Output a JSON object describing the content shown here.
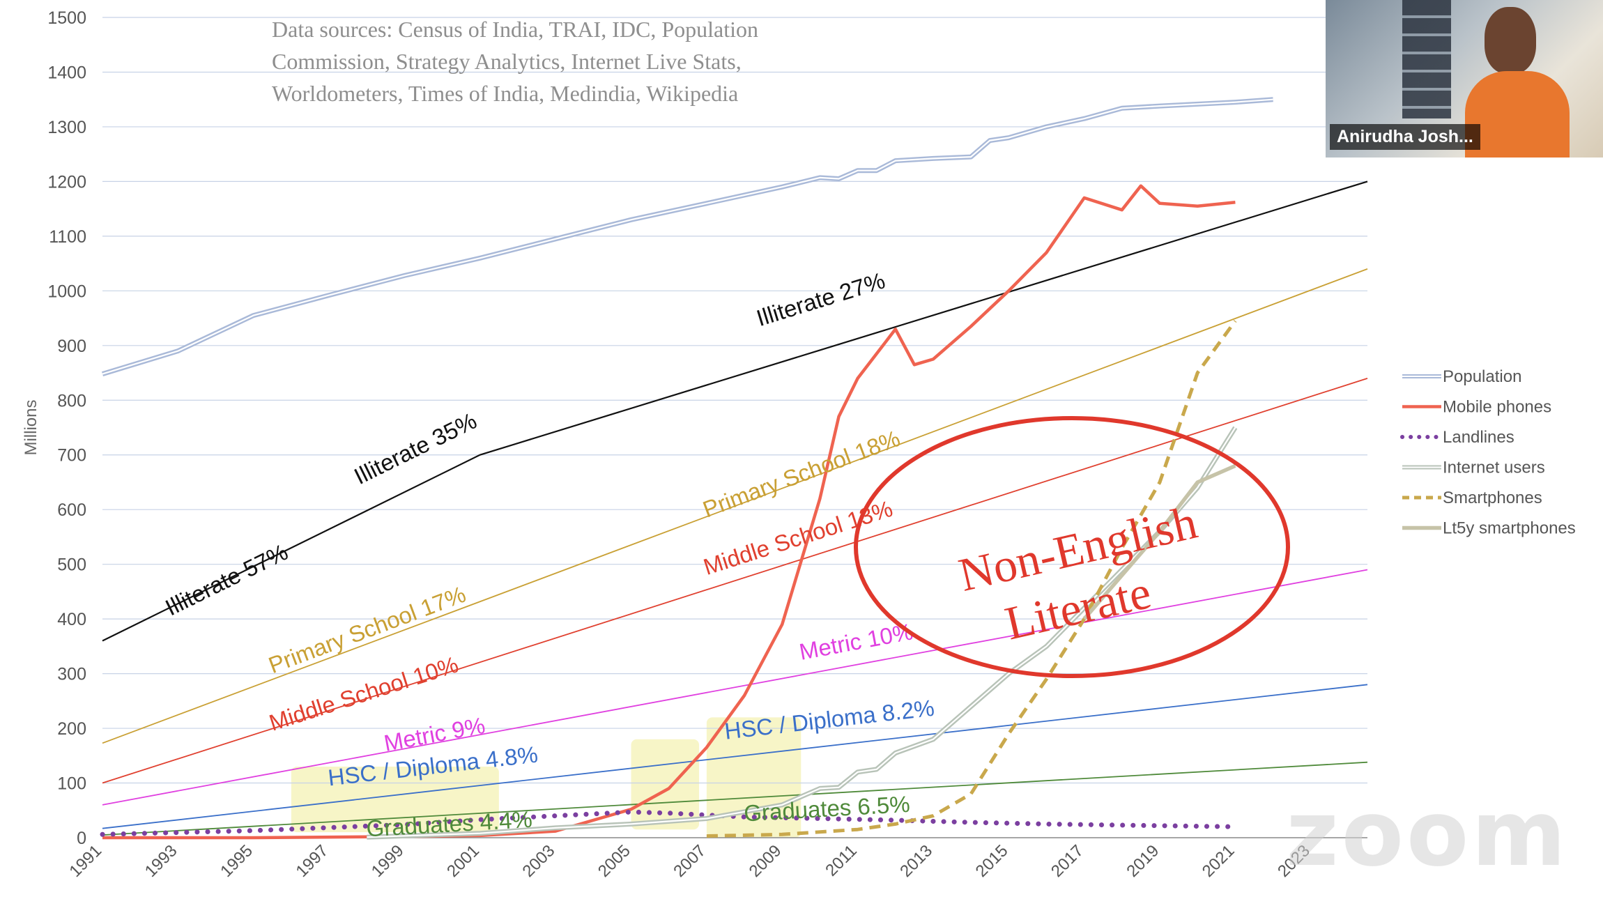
{
  "window": {
    "app": "Zoom",
    "watermark": "zoom",
    "participant_name": "Anirudha Josh..."
  },
  "colors": {
    "population": "#a9b9d8",
    "mobile": "#ef6350",
    "landlines": "#7b3fa0",
    "internet": "#b8c3b8",
    "smartphones": "#c9a84c",
    "lt5y": "#c6c3a8",
    "illiterate": "#111111",
    "primary": "#c9a034",
    "middle": "#e0402f",
    "metric": "#e040e0",
    "hsc": "#3a6fc9",
    "graduates": "#4f8a3a",
    "annotation": "#e0382c",
    "highlight": "#f4f2b4"
  },
  "chart_data": {
    "type": "line",
    "ylabel": "Millions",
    "xlabel": "",
    "ylim": [
      0,
      1500
    ],
    "xlim": [
      1991,
      2024.5
    ],
    "grid": true,
    "legend_position": "right",
    "y_ticks": [
      "0",
      "100",
      "200",
      "300",
      "400",
      "500",
      "600",
      "700",
      "800",
      "900",
      "1000",
      "1100",
      "1200",
      "1300",
      "1400",
      "1500"
    ],
    "x_ticks": [
      "1991",
      "1993",
      "1995",
      "1997",
      "1999",
      "2001",
      "2003",
      "2005",
      "2007",
      "2009",
      "2011",
      "2013",
      "2015",
      "2017",
      "2019",
      "2021",
      "2023"
    ],
    "sources_lines": [
      "Data sources: Census of India, TRAI, IDC, Population",
      "Commission, Strategy Analytics, Internet Live Stats,",
      "Worldometers,  Times of India, Medindia, Wikipedia"
    ],
    "series": [
      {
        "name": "Population",
        "style": "double",
        "color_key": "population",
        "points": [
          [
            1991,
            848
          ],
          [
            1993,
            890
          ],
          [
            1995,
            955
          ],
          [
            1997,
            992
          ],
          [
            1999,
            1028
          ],
          [
            2001,
            1060
          ],
          [
            2003,
            1095
          ],
          [
            2005,
            1130
          ],
          [
            2007,
            1160
          ],
          [
            2009,
            1190
          ],
          [
            2010,
            1207
          ],
          [
            2010.5,
            1205
          ],
          [
            2011,
            1220
          ],
          [
            2011.5,
            1220
          ],
          [
            2012,
            1238
          ],
          [
            2013,
            1242
          ],
          [
            2014,
            1245
          ],
          [
            2014.5,
            1275
          ],
          [
            2015,
            1280
          ],
          [
            2016,
            1300
          ],
          [
            2017,
            1315
          ],
          [
            2018,
            1334
          ],
          [
            2019,
            1338
          ],
          [
            2021,
            1345
          ],
          [
            2022,
            1350
          ]
        ]
      },
      {
        "name": "Mobile phones",
        "style": "solid",
        "color_key": "mobile",
        "points": [
          [
            1991,
            0
          ],
          [
            1995,
            0
          ],
          [
            1999,
            2
          ],
          [
            2001,
            4
          ],
          [
            2003,
            12
          ],
          [
            2005,
            52
          ],
          [
            2006,
            90
          ],
          [
            2007,
            165
          ],
          [
            2008,
            260
          ],
          [
            2009,
            390
          ],
          [
            2010,
            620
          ],
          [
            2010.5,
            770
          ],
          [
            2011,
            840
          ],
          [
            2012,
            930
          ],
          [
            2012.5,
            865
          ],
          [
            2013,
            875
          ],
          [
            2014,
            935
          ],
          [
            2015,
            1000
          ],
          [
            2016,
            1070
          ],
          [
            2017,
            1170
          ],
          [
            2018,
            1148
          ],
          [
            2018.5,
            1192
          ],
          [
            2019,
            1160
          ],
          [
            2020,
            1155
          ],
          [
            2021,
            1162
          ]
        ]
      },
      {
        "name": "Landlines",
        "style": "dotted",
        "color_key": "landlines",
        "points": [
          [
            1991,
            6
          ],
          [
            1995,
            13
          ],
          [
            1999,
            24
          ],
          [
            2001,
            33
          ],
          [
            2003,
            40
          ],
          [
            2005,
            47
          ],
          [
            2006,
            45
          ],
          [
            2008,
            38
          ],
          [
            2010,
            35
          ],
          [
            2012,
            32
          ],
          [
            2014,
            28
          ],
          [
            2016,
            25
          ],
          [
            2018,
            23
          ],
          [
            2020,
            21
          ],
          [
            2021,
            20
          ]
        ]
      },
      {
        "name": "Internet users",
        "style": "double",
        "color_key": "internet",
        "points": [
          [
            1998,
            1
          ],
          [
            2001,
            8
          ],
          [
            2003,
            18
          ],
          [
            2005,
            25
          ],
          [
            2007,
            35
          ],
          [
            2009,
            60
          ],
          [
            2010,
            90
          ],
          [
            2010.5,
            92
          ],
          [
            2011,
            120
          ],
          [
            2011.5,
            125
          ],
          [
            2012,
            155
          ],
          [
            2013,
            180
          ],
          [
            2014,
            240
          ],
          [
            2015,
            300
          ],
          [
            2016,
            350
          ],
          [
            2017,
            420
          ],
          [
            2018,
            490
          ],
          [
            2019,
            560
          ],
          [
            2020,
            640
          ],
          [
            2021,
            750
          ]
        ]
      },
      {
        "name": "Smartphones",
        "style": "dashed",
        "color_key": "smartphones",
        "points": [
          [
            2007,
            3
          ],
          [
            2009,
            6
          ],
          [
            2011,
            15
          ],
          [
            2012,
            25
          ],
          [
            2013,
            40
          ],
          [
            2014,
            80
          ],
          [
            2015,
            190
          ],
          [
            2016,
            290
          ],
          [
            2017,
            400
          ],
          [
            2018,
            530
          ],
          [
            2019,
            650
          ],
          [
            2019.5,
            750
          ],
          [
            2020,
            850
          ],
          [
            2021,
            945
          ]
        ]
      },
      {
        "name": "Lt5y smartphones",
        "style": "solid-thick",
        "color_key": "lt5y",
        "points": [
          [
            2017,
            400
          ],
          [
            2018,
            480
          ],
          [
            2019,
            560
          ],
          [
            2020,
            650
          ],
          [
            2021,
            680
          ]
        ]
      }
    ],
    "bands": [
      {
        "color_key": "illiterate",
        "points": [
          [
            1991,
            360
          ],
          [
            2001,
            700
          ],
          [
            2024.5,
            1200
          ]
        ],
        "labels": [
          {
            "text": "Illiterate 57%",
            "x": 1992.8,
            "y": 405
          },
          {
            "text": "Illiterate 35%",
            "x": 1997.8,
            "y": 645
          },
          {
            "text": "Illiterate 27%",
            "x": 2008.4,
            "y": 935
          }
        ]
      },
      {
        "color_key": "primary",
        "points": [
          [
            1991,
            173
          ],
          [
            2024.5,
            1040
          ]
        ],
        "labels": [
          {
            "text": "Primary School 17%",
            "x": 1995.5,
            "y": 300
          },
          {
            "text": "Primary School 18%",
            "x": 2007.0,
            "y": 585
          }
        ]
      },
      {
        "color_key": "middle",
        "points": [
          [
            1991,
            100
          ],
          [
            2024.5,
            840
          ]
        ],
        "labels": [
          {
            "text": "Middle School 10%",
            "x": 1995.5,
            "y": 195
          },
          {
            "text": "Middle School 13%",
            "x": 2007.0,
            "y": 480
          }
        ]
      },
      {
        "color_key": "metric",
        "points": [
          [
            1991,
            60
          ],
          [
            2024.5,
            490
          ]
        ],
        "labels": [
          {
            "text": "Metric 9%",
            "x": 1998.5,
            "y": 158
          },
          {
            "text": "Metric 10%",
            "x": 2009.5,
            "y": 325
          }
        ]
      },
      {
        "color_key": "hsc",
        "points": [
          [
            1991,
            17
          ],
          [
            2024.5,
            280
          ]
        ],
        "labels": [
          {
            "text": "HSC / Diploma 4.8%",
            "x": 1997.0,
            "y": 95
          },
          {
            "text": "HSC / Diploma 8.2%",
            "x": 2007.5,
            "y": 180
          }
        ]
      },
      {
        "color_key": "graduates",
        "points": [
          [
            1991,
            5
          ],
          [
            2024.5,
            138
          ]
        ],
        "labels": [
          {
            "text": "Graduates 4.4%",
            "x": 1998.0,
            "y": 2
          },
          {
            "text": "Graduates 6.5%",
            "x": 2008.0,
            "y": 30
          }
        ]
      }
    ],
    "annotation": {
      "lines": [
        "Non-English",
        "Literate"
      ]
    }
  }
}
